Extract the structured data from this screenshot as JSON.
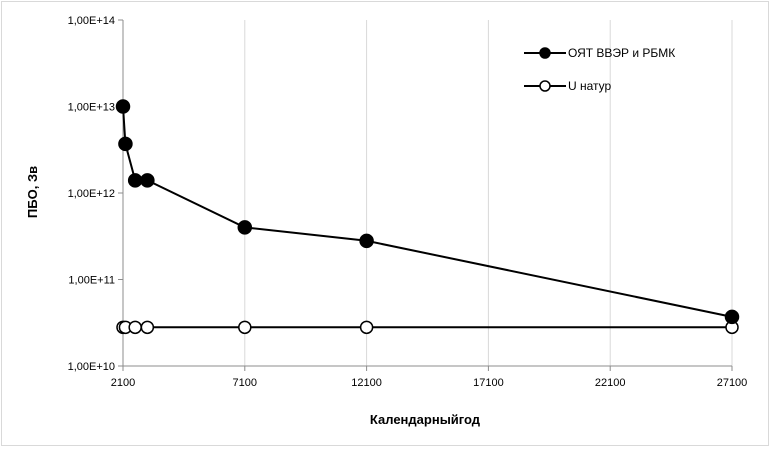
{
  "chart_data": {
    "type": "line",
    "xlabel": "Календарныйгод",
    "ylabel": "ПБО, Зв",
    "xlim": [
      2100,
      27100
    ],
    "ylim": [
      10000000000.0,
      100000000000000.0
    ],
    "yscale": "log",
    "x_ticks": [
      2100,
      7100,
      12100,
      17100,
      22100,
      27100
    ],
    "x_tick_labels": [
      "2100",
      "7100",
      "12100",
      "17100",
      "22100",
      "27100"
    ],
    "y_ticks": [
      10000000000.0,
      100000000000.0,
      1000000000000.0,
      10000000000000.0,
      100000000000000.0
    ],
    "y_tick_labels": [
      "1,00E+10",
      "1,00E+11",
      "1,00E+12",
      "1,00E+13",
      "1,00E+14"
    ],
    "grid": "vertical",
    "legend_position": "top-right",
    "series": [
      {
        "name": "ОЯТ ВВЭР и РБМК",
        "marker": "filled-circle",
        "color": "#000000",
        "x": [
          2100,
          2200,
          2600,
          3100,
          7100,
          12100,
          27100
        ],
        "y": [
          10000000000000.0,
          3700000000000.0,
          1400000000000.0,
          1400000000000.0,
          400000000000.0,
          280000000000.0,
          37000000000.0
        ]
      },
      {
        "name": "U натур",
        "marker": "open-circle",
        "color": "#000000",
        "x": [
          2100,
          2200,
          2600,
          3100,
          7100,
          12100,
          27100
        ],
        "y": [
          28000000000.0,
          28000000000.0,
          28000000000.0,
          28000000000.0,
          28000000000.0,
          28000000000.0,
          28000000000.0
        ]
      }
    ]
  }
}
